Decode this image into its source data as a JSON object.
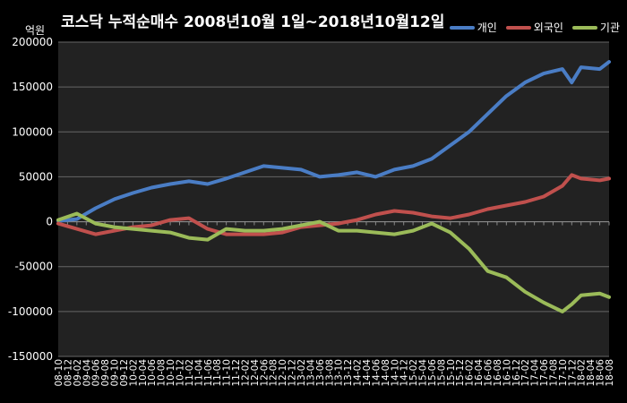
{
  "chart_data": {
    "type": "line",
    "title": "코스닥 누적순매수 2008년10월 1일~2018년10월12일",
    "unit": "억원",
    "ylim": [
      -150000,
      200000
    ],
    "y_ticks": [
      "200000",
      "150000",
      "100000",
      "50000",
      "0",
      "-50000",
      "-100000",
      "-150000"
    ],
    "y_tick_values": [
      200000,
      150000,
      100000,
      50000,
      0,
      -50000,
      -100000,
      -150000
    ],
    "x_ticks": [
      "08-10",
      "08-12",
      "09-02",
      "09-04",
      "09-06",
      "09-08",
      "09-10",
      "09-12",
      "10-02",
      "10-04",
      "10-06",
      "10-08",
      "10-10",
      "10-12",
      "11-02",
      "11-04",
      "11-06",
      "11-08",
      "11-10",
      "11-12",
      "12-02",
      "12-04",
      "12-06",
      "12-08",
      "12-10",
      "12-12",
      "13-02",
      "13-04",
      "13-06",
      "13-08",
      "13-10",
      "13-12",
      "14-02",
      "14-04",
      "14-06",
      "14-08",
      "14-10",
      "14-12",
      "15-02",
      "15-04",
      "15-06",
      "15-08",
      "15-10",
      "15-12",
      "16-02",
      "16-04",
      "16-06",
      "16-08",
      "16-10",
      "16-12",
      "17-02",
      "17-04",
      "17-06",
      "17-08",
      "17-10",
      "17-12",
      "18-02",
      "18-04",
      "18-06",
      "18-08"
    ],
    "x": [
      "08-10",
      "09-02",
      "09-06",
      "09-10",
      "10-02",
      "10-06",
      "10-10",
      "11-02",
      "11-06",
      "11-10",
      "12-02",
      "12-06",
      "12-10",
      "13-02",
      "13-06",
      "13-10",
      "14-02",
      "14-06",
      "14-10",
      "15-02",
      "15-06",
      "15-10",
      "16-02",
      "16-06",
      "16-10",
      "17-02",
      "17-06",
      "17-10",
      "17-12",
      "18-02",
      "18-06",
      "18-10"
    ],
    "series": [
      {
        "name": "개인",
        "color": "#4a7dc5",
        "values": [
          1000,
          3000,
          15000,
          25000,
          32000,
          38000,
          42000,
          45000,
          42000,
          48000,
          55000,
          62000,
          60000,
          58000,
          50000,
          52000,
          55000,
          50000,
          58000,
          62000,
          70000,
          85000,
          100000,
          120000,
          140000,
          155000,
          165000,
          170000,
          155000,
          172000,
          170000,
          178000
        ]
      },
      {
        "name": "외국인",
        "color": "#c0504d",
        "values": [
          -2000,
          -8000,
          -14000,
          -10000,
          -6000,
          -4000,
          2000,
          4000,
          -8000,
          -14000,
          -14000,
          -14000,
          -12000,
          -6000,
          -4000,
          -2000,
          2000,
          8000,
          12000,
          10000,
          6000,
          4000,
          8000,
          14000,
          18000,
          22000,
          28000,
          40000,
          52000,
          48000,
          46000,
          48000
        ]
      },
      {
        "name": "기관",
        "color": "#9bbb59",
        "values": [
          2000,
          9000,
          -2000,
          -6000,
          -8000,
          -10000,
          -12000,
          -18000,
          -20000,
          -8000,
          -10000,
          -10000,
          -8000,
          -4000,
          0,
          -10000,
          -10000,
          -12000,
          -14000,
          -10000,
          -2000,
          -12000,
          -30000,
          -55000,
          -62000,
          -78000,
          -90000,
          -100000,
          -92000,
          -82000,
          -80000,
          -84000
        ]
      }
    ],
    "grid": true,
    "legend_position": "top-right"
  }
}
